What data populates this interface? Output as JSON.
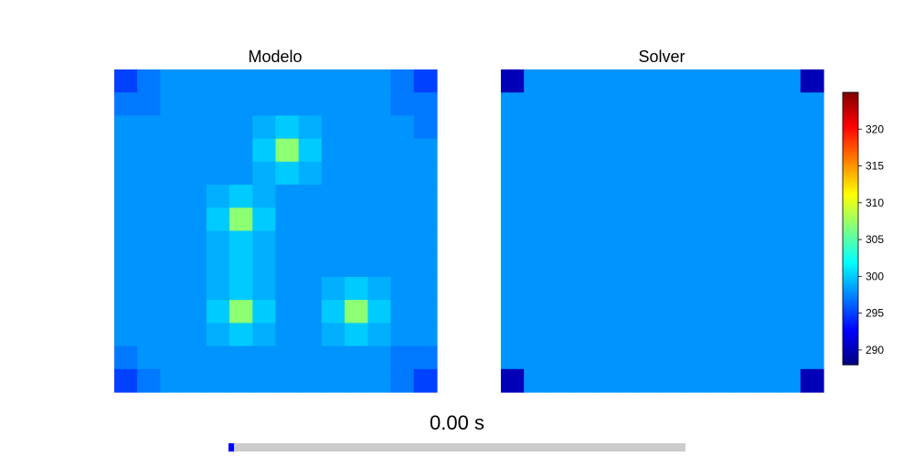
{
  "time_label": "0.00 s",
  "progress": 0.012,
  "chart_data": [
    {
      "type": "heatmap",
      "title": "Modelo",
      "rows": 14,
      "cols": 14,
      "values": [
        [
          295,
          297,
          298,
          298,
          298,
          298,
          298,
          298,
          298,
          298,
          298,
          298,
          297,
          295
        ],
        [
          297,
          297,
          298,
          298,
          298,
          298,
          298,
          298,
          298,
          298,
          298,
          298,
          297,
          297
        ],
        [
          298,
          298,
          298,
          298,
          298,
          298,
          299,
          300,
          299,
          298,
          298,
          298,
          298,
          297
        ],
        [
          298,
          298,
          298,
          298,
          298,
          298,
          300,
          307,
          300,
          298,
          298,
          298,
          298,
          298
        ],
        [
          298,
          298,
          298,
          298,
          298,
          298,
          299,
          300,
          299,
          298,
          298,
          298,
          298,
          298
        ],
        [
          298,
          298,
          298,
          298,
          299,
          300,
          299,
          298,
          298,
          298,
          298,
          298,
          298,
          298
        ],
        [
          298,
          298,
          298,
          298,
          300,
          307,
          300,
          298,
          298,
          298,
          298,
          298,
          298,
          298
        ],
        [
          298,
          298,
          298,
          298,
          299,
          300,
          299,
          298,
          298,
          298,
          298,
          298,
          298,
          298
        ],
        [
          298,
          298,
          298,
          298,
          299,
          300,
          299,
          298,
          298,
          298,
          298,
          298,
          298,
          298
        ],
        [
          298,
          298,
          298,
          298,
          299,
          300,
          299,
          298,
          298,
          299,
          300,
          299,
          298,
          298
        ],
        [
          298,
          298,
          298,
          298,
          300,
          307,
          300,
          298,
          298,
          300,
          307,
          300,
          298,
          298
        ],
        [
          298,
          298,
          298,
          298,
          299,
          300,
          299,
          298,
          298,
          299,
          300,
          299,
          298,
          298
        ],
        [
          297,
          298,
          298,
          298,
          298,
          298,
          298,
          298,
          298,
          298,
          298,
          298,
          297,
          297
        ],
        [
          295,
          297,
          298,
          298,
          298,
          298,
          298,
          298,
          298,
          298,
          298,
          298,
          297,
          295
        ]
      ]
    },
    {
      "type": "heatmap",
      "title": "Solver",
      "rows": 14,
      "cols": 14,
      "values": [
        [
          290,
          298,
          298,
          298,
          298,
          298,
          298,
          298,
          298,
          298,
          298,
          298,
          298,
          290
        ],
        [
          298,
          298,
          298,
          298,
          298,
          298,
          298,
          298,
          298,
          298,
          298,
          298,
          298,
          298
        ],
        [
          298,
          298,
          298,
          298,
          298,
          298,
          298,
          298,
          298,
          298,
          298,
          298,
          298,
          298
        ],
        [
          298,
          298,
          298,
          298,
          298,
          298,
          298,
          298,
          298,
          298,
          298,
          298,
          298,
          298
        ],
        [
          298,
          298,
          298,
          298,
          298,
          298,
          298,
          298,
          298,
          298,
          298,
          298,
          298,
          298
        ],
        [
          298,
          298,
          298,
          298,
          298,
          298,
          298,
          298,
          298,
          298,
          298,
          298,
          298,
          298
        ],
        [
          298,
          298,
          298,
          298,
          298,
          298,
          298,
          298,
          298,
          298,
          298,
          298,
          298,
          298
        ],
        [
          298,
          298,
          298,
          298,
          298,
          298,
          298,
          298,
          298,
          298,
          298,
          298,
          298,
          298
        ],
        [
          298,
          298,
          298,
          298,
          298,
          298,
          298,
          298,
          298,
          298,
          298,
          298,
          298,
          298
        ],
        [
          298,
          298,
          298,
          298,
          298,
          298,
          298,
          298,
          298,
          298,
          298,
          298,
          298,
          298
        ],
        [
          298,
          298,
          298,
          298,
          298,
          298,
          298,
          298,
          298,
          298,
          298,
          298,
          298,
          298
        ],
        [
          298,
          298,
          298,
          298,
          298,
          298,
          298,
          298,
          298,
          298,
          298,
          298,
          298,
          298
        ],
        [
          298,
          298,
          298,
          298,
          298,
          298,
          298,
          298,
          298,
          298,
          298,
          298,
          298,
          298
        ],
        [
          290,
          298,
          298,
          298,
          298,
          298,
          298,
          298,
          298,
          298,
          298,
          298,
          298,
          290
        ]
      ]
    }
  ],
  "colorbar": {
    "colormap": "jet",
    "vmin": 288,
    "vmax": 325,
    "ticks": [
      290,
      295,
      300,
      305,
      310,
      315,
      320
    ]
  }
}
